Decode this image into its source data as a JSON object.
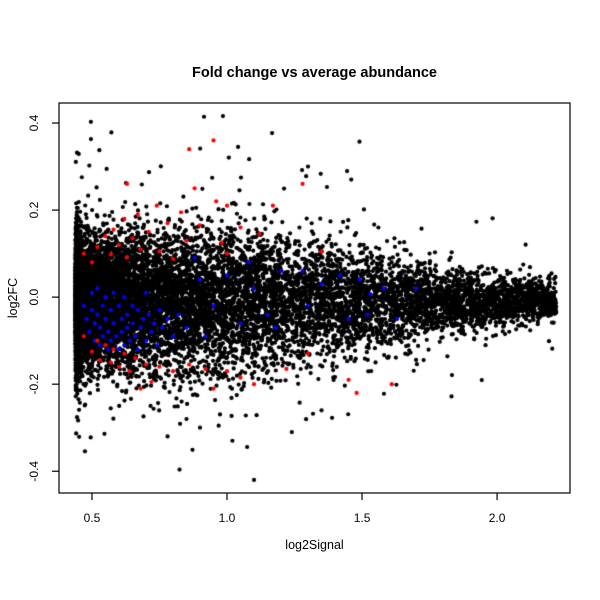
{
  "figure": {
    "kind": "R-base-scatter-plot"
  },
  "colors": {
    "background": "#ffffff",
    "axis": "#000000",
    "points_black": "#000000",
    "points_red": "#ff0000",
    "points_blue": "#0000ff"
  },
  "chart_data": {
    "type": "scatter",
    "title": "Fold change vs average abundance",
    "xlabel": "log2Signal",
    "ylabel": "log2FC",
    "xlim": [
      0.378,
      2.27
    ],
    "ylim": [
      -0.45,
      0.446
    ],
    "x_ticks": [
      0.5,
      1.0,
      1.5,
      2.0
    ],
    "x_tick_labels": [
      "0.5",
      "1.0",
      "1.5",
      "2.0"
    ],
    "y_ticks": [
      -0.4,
      -0.2,
      0.0,
      0.2,
      0.4
    ],
    "y_tick_labels": [
      "-0.4",
      "-0.2",
      "0.0",
      "0.2",
      "0.4"
    ],
    "grid": false,
    "legend_position": "none",
    "marker_radius": 2.1,
    "series": [
      {
        "name": "all-probes-black",
        "color": "#000000",
        "generated": true,
        "n_points": 12500,
        "seed": 42,
        "x_model": {
          "dist": "power",
          "min": 0.44,
          "range": 1.78,
          "exponent": 2.6
        },
        "y_model": {
          "dist": "normal",
          "center": -0.01,
          "sd_base": 0.05,
          "sd_bump_amp": 0.034,
          "sd_bump_mu": 0.9,
          "sd_bump_2var": 0.32,
          "taper_start": 1.5,
          "taper_end": 2.2,
          "taper_min": 0.45,
          "heavy_tail_prob": 0.03,
          "heavy_tail_mult": 2.2,
          "y_clip": [
            -0.432,
            0.425
          ]
        },
        "outliers": [
          [
            0.985,
            0.416
          ],
          [
            1.167,
            0.377
          ],
          [
            1.041,
            0.345
          ],
          [
            1.082,
            0.317
          ],
          [
            1.278,
            0.292
          ],
          [
            1.293,
            0.278
          ],
          [
            1.37,
            0.253
          ],
          [
            1.46,
            0.27
          ],
          [
            0.626,
            0.262
          ],
          [
            1.3,
            0.3
          ],
          [
            1.62,
            0.135
          ],
          [
            1.75,
            0.1
          ],
          [
            1.1,
            -0.42
          ],
          [
            1.02,
            -0.33
          ],
          [
            1.24,
            -0.31
          ],
          [
            0.9,
            -0.3
          ],
          [
            1.35,
            -0.26
          ],
          [
            0.85,
            -0.28
          ],
          [
            1.55,
            -0.15
          ],
          [
            1.66,
            -0.13
          ]
        ]
      },
      {
        "name": "flagged-red",
        "color": "#ff0000",
        "generated": false,
        "points": [
          [
            0.95,
            0.36
          ],
          [
            0.86,
            0.34
          ],
          [
            1.28,
            0.26
          ],
          [
            0.63,
            0.26
          ],
          [
            0.88,
            0.25
          ],
          [
            0.96,
            0.22
          ],
          [
            1.17,
            0.21
          ],
          [
            0.74,
            0.21
          ],
          [
            1.0,
            0.21
          ],
          [
            0.83,
            0.195
          ],
          [
            0.67,
            0.19
          ],
          [
            0.62,
            0.18
          ],
          [
            0.78,
            0.17
          ],
          [
            0.9,
            0.165
          ],
          [
            1.05,
            0.16
          ],
          [
            0.58,
            0.155
          ],
          [
            0.71,
            0.15
          ],
          [
            1.12,
            0.145
          ],
          [
            0.55,
            0.14
          ],
          [
            0.65,
            0.135
          ],
          [
            0.85,
            0.13
          ],
          [
            0.98,
            0.125
          ],
          [
            0.6,
            0.12
          ],
          [
            0.52,
            0.115
          ],
          [
            0.68,
            0.11
          ],
          [
            0.75,
            0.105
          ],
          [
            1.35,
            0.105
          ],
          [
            1.0,
            0.1
          ],
          [
            0.47,
            0.1
          ],
          [
            0.57,
            0.098
          ],
          [
            0.63,
            0.092
          ],
          [
            0.8,
            0.088
          ],
          [
            0.5,
            0.08
          ],
          [
            0.47,
            -0.09
          ],
          [
            0.52,
            -0.1
          ],
          [
            0.55,
            -0.11
          ],
          [
            0.58,
            -0.12
          ],
          [
            0.5,
            -0.125
          ],
          [
            0.62,
            -0.13
          ],
          [
            1.3,
            -0.13
          ],
          [
            0.66,
            -0.14
          ],
          [
            0.53,
            -0.145
          ],
          [
            0.57,
            -0.15
          ],
          [
            0.6,
            -0.16
          ],
          [
            0.64,
            -0.17
          ],
          [
            0.7,
            -0.155
          ],
          [
            0.75,
            -0.16
          ],
          [
            0.8,
            -0.17
          ],
          [
            0.86,
            -0.155
          ],
          [
            0.92,
            -0.165
          ],
          [
            1.0,
            -0.17
          ],
          [
            1.05,
            -0.185
          ],
          [
            1.1,
            -0.2
          ],
          [
            0.95,
            -0.21
          ],
          [
            0.72,
            -0.195
          ],
          [
            0.68,
            -0.21
          ],
          [
            1.22,
            -0.165
          ],
          [
            1.45,
            -0.19
          ],
          [
            1.48,
            -0.22
          ],
          [
            1.61,
            -0.2
          ]
        ]
      },
      {
        "name": "flagged-blue",
        "color": "#0000ff",
        "generated": false,
        "points": [
          [
            0.47,
            -0.02
          ],
          [
            0.48,
            -0.05
          ],
          [
            0.49,
            -0.08
          ],
          [
            0.5,
            0.01
          ],
          [
            0.5,
            -0.03
          ],
          [
            0.51,
            -0.06
          ],
          [
            0.51,
            -0.1
          ],
          [
            0.52,
            0.02
          ],
          [
            0.52,
            -0.04
          ],
          [
            0.53,
            -0.07
          ],
          [
            0.53,
            -0.11
          ],
          [
            0.54,
            -0.02
          ],
          [
            0.54,
            -0.09
          ],
          [
            0.55,
            0.0
          ],
          [
            0.55,
            -0.05
          ],
          [
            0.56,
            -0.08
          ],
          [
            0.56,
            -0.12
          ],
          [
            0.57,
            -0.03
          ],
          [
            0.57,
            -0.1
          ],
          [
            0.58,
            0.01
          ],
          [
            0.58,
            -0.06
          ],
          [
            0.59,
            -0.09
          ],
          [
            0.6,
            -0.02
          ],
          [
            0.6,
            -0.12
          ],
          [
            0.61,
            -0.05
          ],
          [
            0.61,
            -0.08
          ],
          [
            0.62,
            0.0
          ],
          [
            0.62,
            -0.11
          ],
          [
            0.63,
            -0.04
          ],
          [
            0.63,
            -0.07
          ],
          [
            0.64,
            -0.1
          ],
          [
            0.65,
            -0.02
          ],
          [
            0.65,
            -0.06
          ],
          [
            0.66,
            -0.09
          ],
          [
            0.67,
            -0.12
          ],
          [
            0.67,
            -0.03
          ],
          [
            0.68,
            -0.07
          ],
          [
            0.69,
            -0.05
          ],
          [
            0.7,
            -0.1
          ],
          [
            0.7,
            0.01
          ],
          [
            0.71,
            -0.04
          ],
          [
            0.72,
            -0.08
          ],
          [
            0.73,
            -0.06
          ],
          [
            0.74,
            -0.11
          ],
          [
            0.75,
            -0.03
          ],
          [
            0.76,
            -0.07
          ],
          [
            0.78,
            -0.05
          ],
          [
            0.8,
            -0.09
          ],
          [
            0.82,
            -0.04
          ],
          [
            0.85,
            -0.07
          ],
          [
            0.88,
            0.09
          ],
          [
            0.9,
            0.04
          ],
          [
            0.92,
            -0.09
          ],
          [
            0.95,
            -0.02
          ],
          [
            1.0,
            0.05
          ],
          [
            1.05,
            -0.06
          ],
          [
            1.08,
            0.08
          ],
          [
            1.1,
            0.02
          ],
          [
            1.15,
            -0.04
          ],
          [
            1.18,
            -0.07
          ],
          [
            1.2,
            0.06
          ],
          [
            1.28,
            0.06
          ],
          [
            1.3,
            -0.02
          ],
          [
            1.35,
            0.03
          ],
          [
            1.42,
            0.05
          ],
          [
            1.45,
            -0.05
          ],
          [
            1.49,
            0.04
          ],
          [
            1.52,
            -0.04
          ],
          [
            1.53,
            0.007
          ],
          [
            1.58,
            0.02
          ],
          [
            1.63,
            -0.05
          ],
          [
            1.7,
            0.02
          ]
        ]
      }
    ]
  }
}
